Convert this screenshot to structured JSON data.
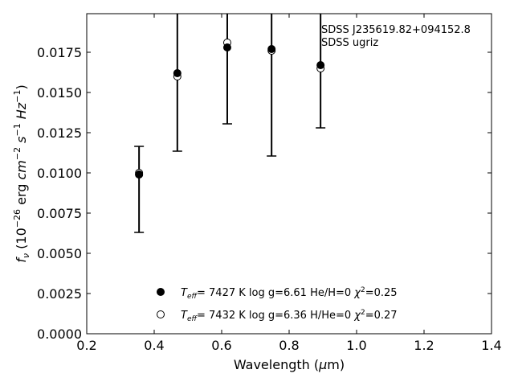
{
  "chart_data": {
    "type": "scatter",
    "annotation_lines": [
      "SDSS J235619.82+094152.8",
      "SDSS ugriz"
    ],
    "xlabel": "Wavelength (μm)",
    "ylabel": "fν (10⁻²⁶ erg cm⁻² s⁻¹ Hz⁻¹)",
    "xlim": [
      0.2,
      1.4
    ],
    "ylim": [
      0.0,
      0.0199
    ],
    "xticks": [
      "0.2",
      "0.4",
      "0.6",
      "0.8",
      "1.0",
      "1.2",
      "1.4"
    ],
    "yticks": [
      "0.0000",
      "0.0025",
      "0.0050",
      "0.0075",
      "0.0100",
      "0.0125",
      "0.0150",
      "0.0175"
    ],
    "grid": false,
    "legend_position": "bottom-center",
    "observed": {
      "x": [
        0.3551,
        0.4686,
        0.6166,
        0.748,
        0.8932
      ],
      "y_upper": [
        0.01165,
        0.0199,
        0.0199,
        0.0199,
        0.0199
      ],
      "y_lower": [
        0.0063,
        0.01135,
        0.01305,
        0.01105,
        0.0128
      ]
    },
    "series": [
      {
        "name": "Teff= 7427 K log g=6.61 He/H=0 χ²=0.25",
        "marker": "filled-circle",
        "x": [
          0.3551,
          0.4686,
          0.6166,
          0.748,
          0.8932
        ],
        "y": [
          0.0099,
          0.0162,
          0.0178,
          0.0177,
          0.0167
        ]
      },
      {
        "name": "Teff= 7432 K log g=6.36 H/He=0 χ²=0.27",
        "marker": "open-circle",
        "x": [
          0.3551,
          0.4686,
          0.6166,
          0.748,
          0.8932
        ],
        "y": [
          0.01,
          0.016,
          0.0181,
          0.0176,
          0.0165
        ]
      }
    ]
  }
}
